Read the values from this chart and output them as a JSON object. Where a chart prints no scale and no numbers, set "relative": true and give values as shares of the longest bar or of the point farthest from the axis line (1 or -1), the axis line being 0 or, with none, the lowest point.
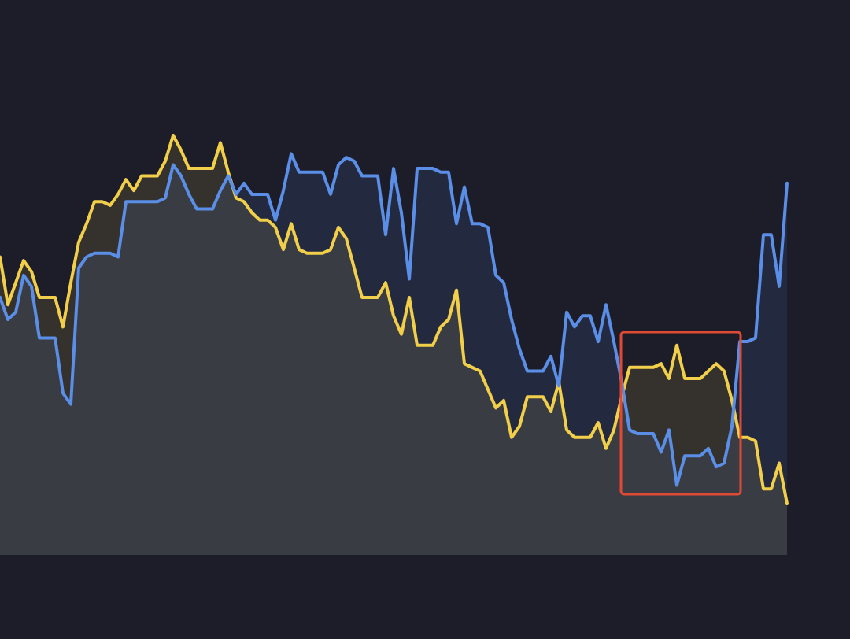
{
  "chart_data": {
    "type": "area",
    "relative": true,
    "categories": [
      null,
      null,
      null,
      null,
      null,
      null,
      null,
      null,
      null,
      null,
      null,
      null,
      null,
      null,
      null,
      null,
      null,
      null,
      null,
      null,
      null,
      null,
      null,
      null,
      null,
      null,
      null,
      null,
      null,
      null,
      null,
      null,
      null,
      null,
      null,
      null,
      null,
      null,
      null,
      null,
      null,
      null,
      null,
      null,
      null,
      null,
      null,
      null,
      null,
      null,
      null,
      null,
      null,
      null,
      null,
      null,
      null,
      null,
      null,
      null,
      null,
      null,
      null,
      null,
      null,
      null,
      null,
      null,
      null,
      null,
      null,
      null,
      null,
      null,
      null,
      null,
      null,
      null,
      null,
      null,
      null,
      null,
      null,
      null,
      null,
      null,
      null,
      null,
      null,
      null,
      null,
      null,
      null,
      null,
      null,
      null,
      null,
      null,
      null,
      null,
      null
    ],
    "series": [
      {
        "color": "#f2cf4a",
        "values": [
          0.67,
          0.54,
          0.6,
          0.66,
          0.63,
          0.56,
          0.56,
          0.56,
          0.48,
          0.6,
          0.71,
          0.76,
          0.82,
          0.82,
          0.81,
          0.84,
          0.88,
          0.85,
          0.89,
          0.89,
          0.89,
          0.93,
          1,
          0.96,
          0.91,
          0.91,
          0.91,
          0.91,
          0.98,
          0.9,
          0.83,
          0.82,
          0.79,
          0.77,
          0.77,
          0.75,
          0.69,
          0.76,
          0.69,
          0.68,
          0.68,
          0.68,
          0.69,
          0.75,
          0.72,
          0.64,
          0.56,
          0.56,
          0.56,
          0.6,
          0.51,
          0.46,
          0.56,
          0.43,
          0.43,
          0.43,
          0.48,
          0.5,
          0.58,
          0.38,
          0.37,
          0.36,
          0.31,
          0.26,
          0.28,
          0.18,
          0.21,
          0.29,
          0.29,
          0.29,
          0.25,
          0.33,
          0.2,
          0.18,
          0.18,
          0.18,
          0.22,
          0.15,
          0.2,
          0.29,
          0.37,
          0.37,
          0.37,
          0.37,
          0.38,
          0.34,
          0.43,
          0.34,
          0.34,
          0.34,
          0.36,
          0.38,
          0.36,
          0.28,
          0.18,
          0.18,
          0.17,
          0.04,
          0.04,
          0.11,
          0
        ]
      },
      {
        "color": "#5b8ee6",
        "values": [
          0.56,
          0.5,
          0.52,
          0.62,
          0.59,
          0.45,
          0.45,
          0.45,
          0.3,
          0.27,
          0.64,
          0.67,
          0.68,
          0.68,
          0.68,
          0.67,
          0.82,
          0.82,
          0.82,
          0.82,
          0.82,
          0.83,
          0.92,
          0.89,
          0.84,
          0.8,
          0.8,
          0.8,
          0.85,
          0.89,
          0.84,
          0.87,
          0.84,
          0.84,
          0.84,
          0.77,
          0.85,
          0.95,
          0.9,
          0.9,
          0.9,
          0.9,
          0.84,
          0.92,
          0.94,
          0.93,
          0.89,
          0.89,
          0.89,
          0.73,
          0.91,
          0.79,
          0.61,
          0.91,
          0.91,
          0.91,
          0.9,
          0.9,
          0.76,
          0.86,
          0.76,
          0.76,
          0.75,
          0.62,
          0.6,
          0.5,
          0.42,
          0.36,
          0.36,
          0.36,
          0.4,
          0.32,
          0.52,
          0.48,
          0.51,
          0.51,
          0.44,
          0.54,
          0.44,
          0.33,
          0.2,
          0.19,
          0.19,
          0.19,
          0.14,
          0.2,
          0.05,
          0.13,
          0.13,
          0.13,
          0.15,
          0.1,
          0.11,
          0.21,
          0.44,
          0.44,
          0.45,
          0.73,
          0.73,
          0.59,
          0.87
        ]
      }
    ]
  }
}
